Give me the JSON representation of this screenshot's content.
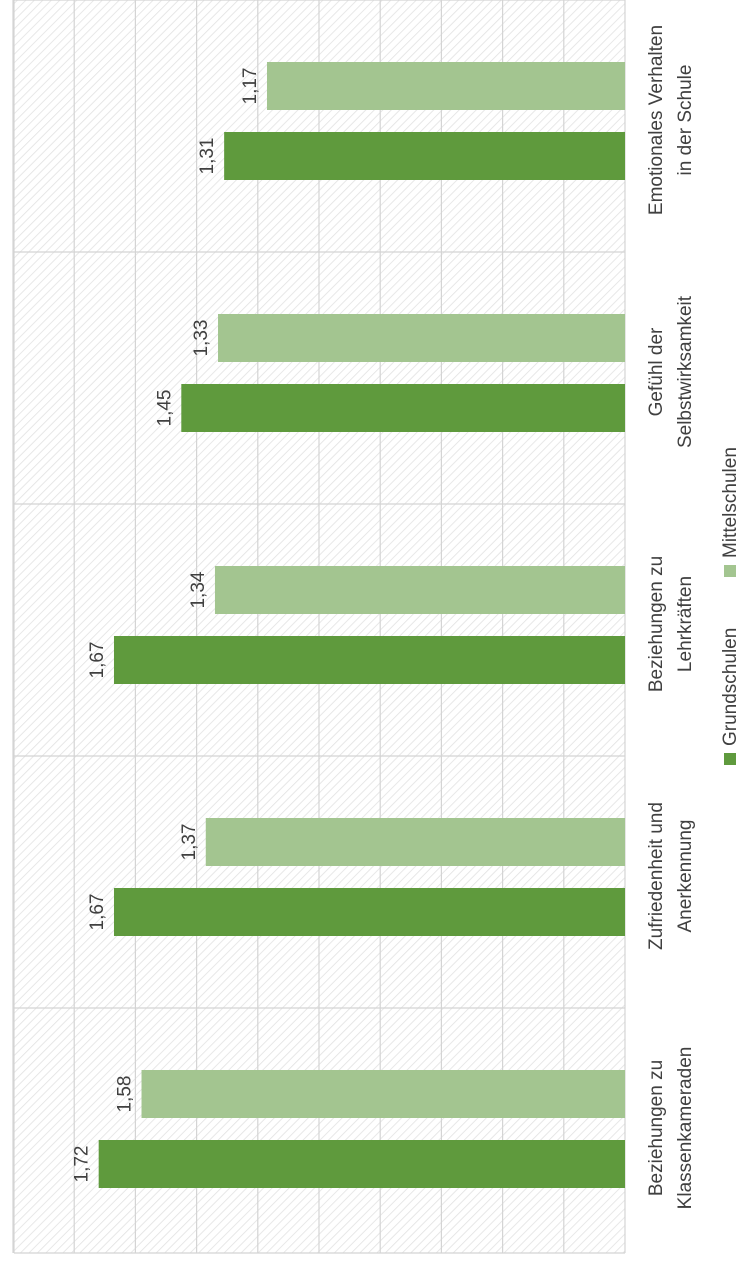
{
  "chart_data": {
    "type": "bar",
    "orientation": "horizontal",
    "categories": [
      [
        "Emotionales Verhalten",
        "in der Schule"
      ],
      [
        "Gefühl der",
        "Selbstwirksamkeit"
      ],
      [
        "Beziehungen zu",
        "Lehrkräften"
      ],
      [
        "Zufriedenheit und",
        "Anerkennung"
      ],
      [
        "Beziehungen zu",
        "Klassenkameraden"
      ]
    ],
    "series": [
      {
        "name": "Grundschulen",
        "color": "#5f9a3d",
        "values": [
          1.31,
          1.45,
          1.67,
          1.67,
          1.72
        ],
        "labels": [
          "1,31",
          "1,45",
          "1,67",
          "1,67",
          "1,72"
        ]
      },
      {
        "name": "Mittelschulen",
        "color": "#a3c590",
        "values": [
          1.17,
          1.33,
          1.34,
          1.37,
          1.58
        ],
        "labels": [
          "1,17",
          "1,33",
          "1,34",
          "1,37",
          "1,58"
        ]
      }
    ],
    "axis": {
      "min": 0,
      "max": 2,
      "grid": true,
      "tick_labels_visible": false
    },
    "background_pattern": "diagonal-hatch",
    "legend": {
      "position": "bottom",
      "entries": [
        "Grundschulen",
        "Mittelschulen"
      ]
    },
    "rotation": "rotated 90 degrees clockwise"
  }
}
